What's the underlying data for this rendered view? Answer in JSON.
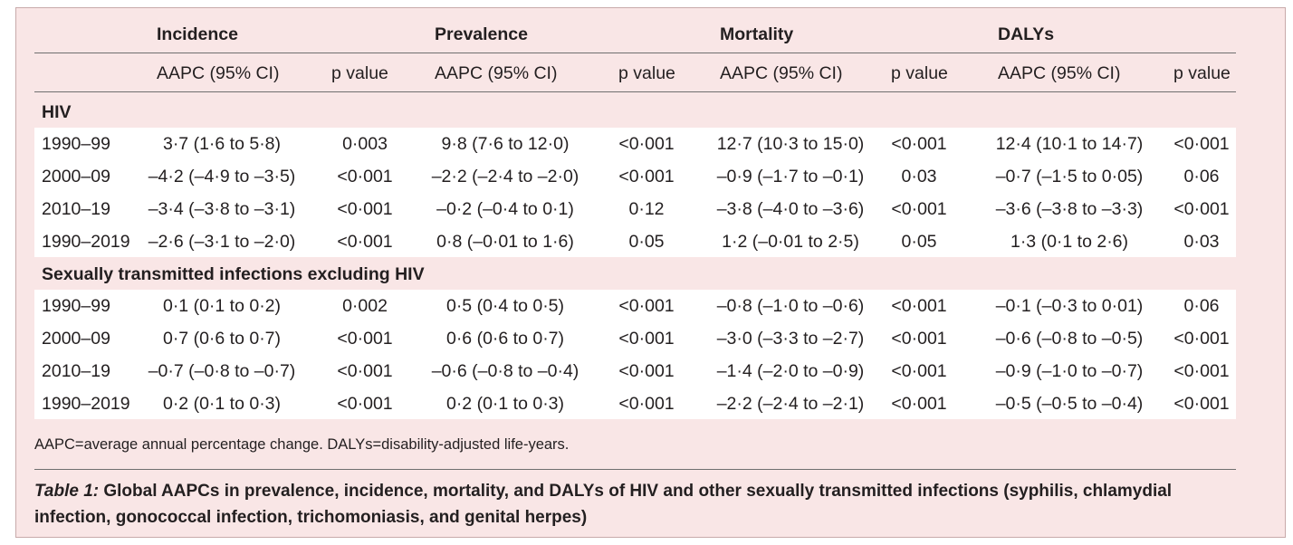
{
  "columns": {
    "groups": [
      "Incidence",
      "Prevalence",
      "Mortality",
      "DALYs"
    ],
    "sub": [
      "AAPC (95% CI)",
      "p value",
      "AAPC (95% CI)",
      "p value",
      "AAPC (95% CI)",
      "p value",
      "AAPC (95% CI)",
      "p value"
    ]
  },
  "sections": [
    {
      "title": "HIV",
      "rows": [
        {
          "period": "1990–99",
          "cells": [
            "3·7 (1·6 to 5·8)",
            "0·003",
            "9·8 (7·6 to 12·0)",
            "<0·001",
            "12·7 (10·3 to 15·0)",
            "<0·001",
            "12·4 (10·1 to 14·7)",
            "<0·001"
          ]
        },
        {
          "period": "2000–09",
          "cells": [
            "–4·2 (–4·9 to –3·5)",
            "<0·001",
            "–2·2 (–2·4 to –2·0)",
            "<0·001",
            "–0·9 (–1·7 to –0·1)",
            "0·03",
            "–0·7 (–1·5 to 0·05)",
            "0·06"
          ]
        },
        {
          "period": "2010–19",
          "cells": [
            "–3·4 (–3·8 to –3·1)",
            "<0·001",
            "–0·2 (–0·4 to 0·1)",
            "0·12",
            "–3·8 (–4·0 to –3·6)",
            "<0·001",
            "–3·6 (–3·8 to –3·3)",
            "<0·001"
          ]
        },
        {
          "period": "1990–2019",
          "cells": [
            "–2·6 (–3·1 to –2·0)",
            "<0·001",
            "0·8 (–0·01 to 1·6)",
            "0·05",
            "1·2 (–0·01 to 2·5)",
            "0·05",
            "1·3 (0·1 to 2·6)",
            "0·03"
          ]
        }
      ]
    },
    {
      "title": "Sexually transmitted infections excluding HIV",
      "rows": [
        {
          "period": "1990–99",
          "cells": [
            "0·1 (0·1 to 0·2)",
            "0·002",
            "0·5 (0·4 to 0·5)",
            "<0·001",
            "–0·8 (–1·0 to –0·6)",
            "<0·001",
            "–0·1 (–0·3 to 0·01)",
            "0·06"
          ]
        },
        {
          "period": "2000–09",
          "cells": [
            "0·7 (0·6 to 0·7)",
            "<0·001",
            "0·6 (0·6 to 0·7)",
            "<0·001",
            "–3·0 (–3·3 to –2·7)",
            "<0·001",
            "–0·6 (–0·8 to –0·5)",
            "<0·001"
          ]
        },
        {
          "period": "2010–19",
          "cells": [
            "–0·7 (–0·8 to –0·7)",
            "<0·001",
            "–0·6 (–0·8 to –0·4)",
            "<0·001",
            "–1·4 (–2·0 to –0·9)",
            "<0·001",
            "–0·9 (–1·0 to –0·7)",
            "<0·001"
          ]
        },
        {
          "period": "1990–2019",
          "cells": [
            "0·2 (0·1 to 0·3)",
            "<0·001",
            "0·2 (0·1 to 0·3)",
            "<0·001",
            "–2·2 (–2·4 to –2·1)",
            "<0·001",
            "–0·5 (–0·5 to –0·4)",
            "<0·001"
          ]
        }
      ]
    }
  ],
  "footnote": "AAPC=average annual percentage change. DALYs=disability-adjusted life-years.",
  "caption": {
    "label": "Table 1:",
    "text": " Global AAPCs in prevalence, incidence, mortality, and DALYs of HIV and other sexually transmitted infections (syphilis, chlamydial infection, gonococcal infection, trichomoniasis, and genital herpes)"
  },
  "colors": {
    "panel": "#f9e6e6",
    "band": "#ffffff",
    "rule": "#6f6f6f"
  }
}
